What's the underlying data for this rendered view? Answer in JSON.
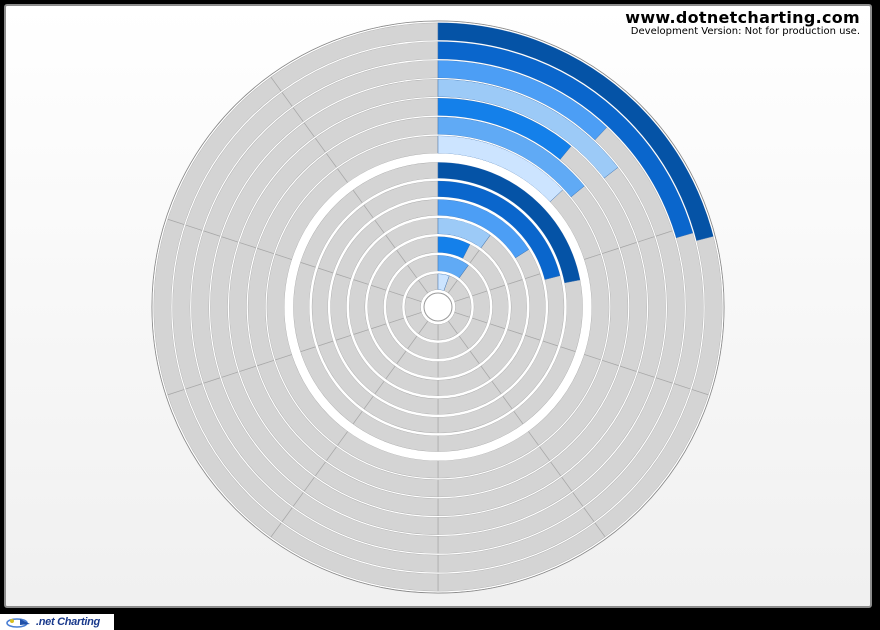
{
  "watermark": {
    "site": "www.dotnetcharting.com",
    "note": "Development Version: Not for production use."
  },
  "footer": {
    "logo_text": ".net Charting",
    "logo_icon": "dotnetcharting-swoosh-icon"
  },
  "colors": {
    "empty": "#d4d4d4",
    "segment_stroke": "#ffffff",
    "outline": "#8a8a8a",
    "series": [
      "#cce4ff",
      "#60aaf5",
      "#1480ea",
      "#9ccaf7",
      "#4c9ef5",
      "#0a66cc",
      "#0553a6"
    ]
  },
  "chart_data": [
    {
      "type": "gauge",
      "variant": "bars-radial-stacked",
      "name": "outer-gauge",
      "scale": [
        0,
        10
      ],
      "start_angle_deg": 0,
      "sweep_deg": 360,
      "series": [
        {
          "values": [
            1.3
          ]
        },
        {
          "values": [
            1.4
          ]
        },
        {
          "values": [
            1.1
          ]
        },
        {
          "values": [
            1.45
          ]
        },
        {
          "values": [
            1.2
          ]
        },
        {
          "values": [
            2.05
          ]
        },
        {
          "values": [
            2.1
          ]
        }
      ]
    },
    {
      "type": "gauge",
      "variant": "bars-radial-stacked",
      "name": "inner-gauge",
      "scale": [
        0,
        10
      ],
      "start_angle_deg": 0,
      "sweep_deg": 360,
      "series": [
        {
          "values": [
            0.55
          ]
        },
        {
          "values": [
            1.0
          ]
        },
        {
          "values": [
            0.75
          ]
        },
        {
          "values": [
            1.0
          ]
        },
        {
          "values": [
            1.6
          ]
        },
        {
          "values": [
            2.1
          ]
        },
        {
          "values": [
            2.2
          ]
        }
      ]
    }
  ]
}
